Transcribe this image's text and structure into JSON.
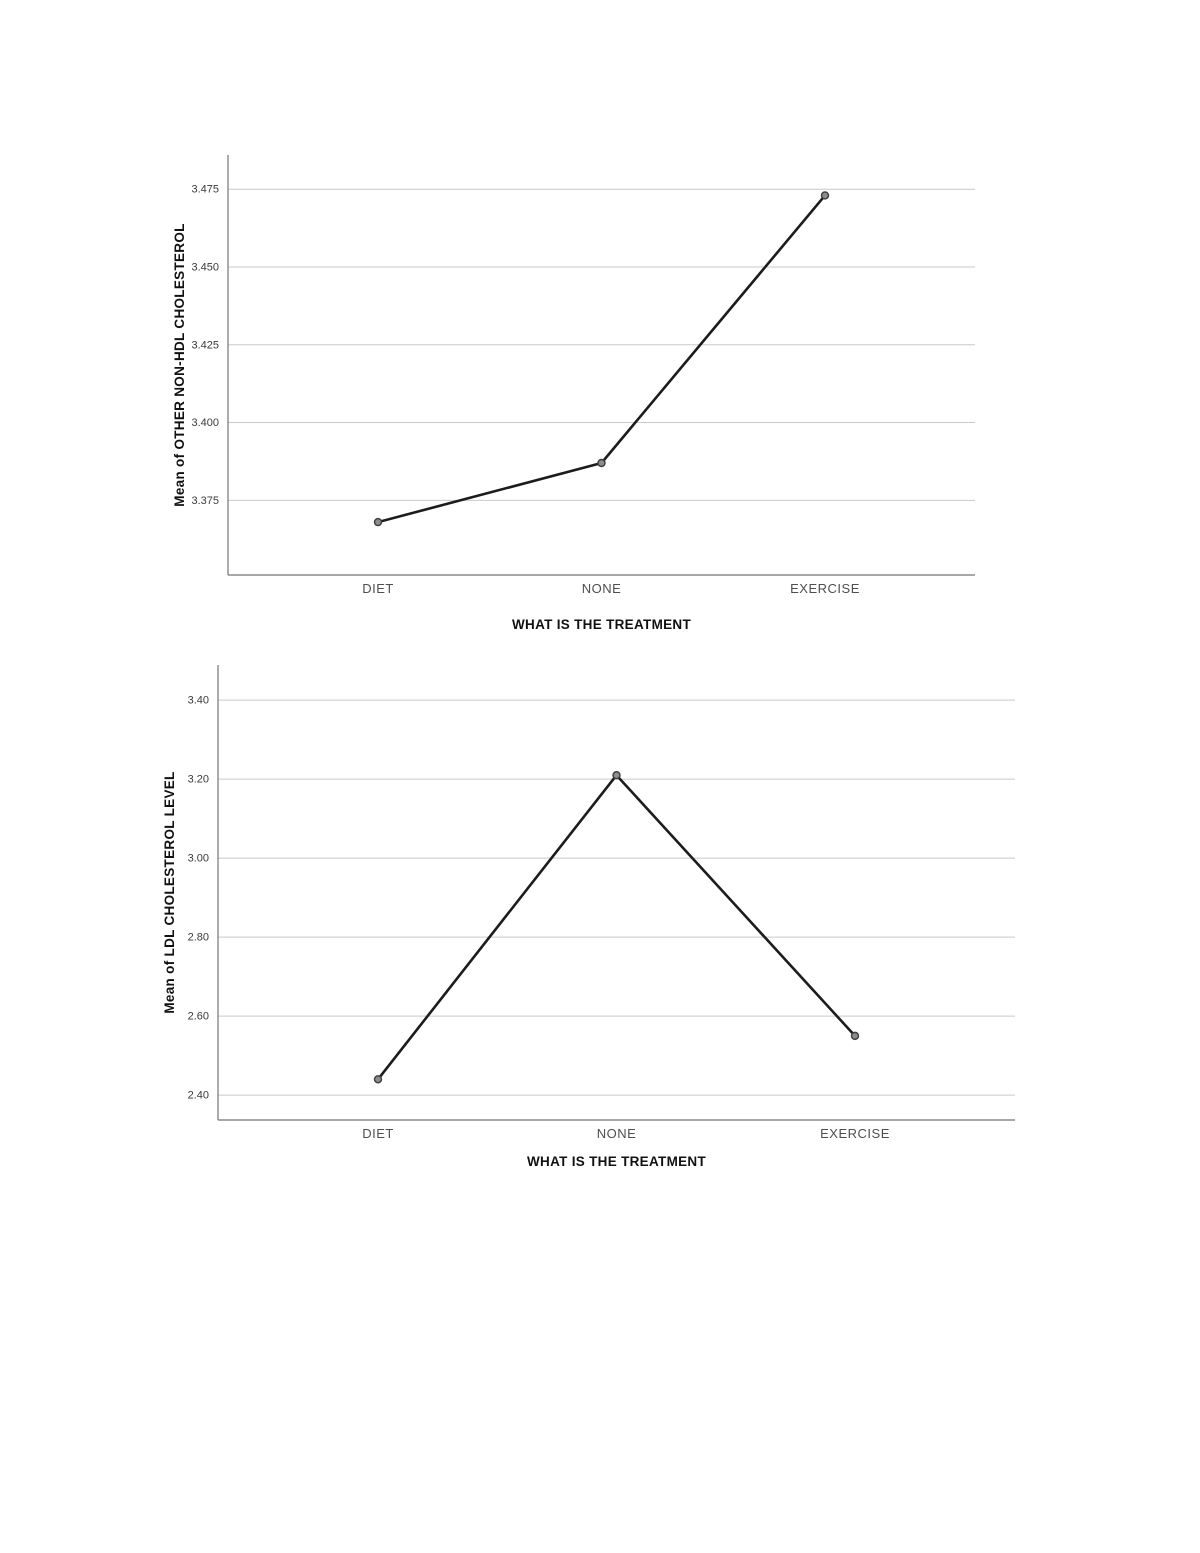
{
  "page": {
    "background": "#ffffff"
  },
  "style": {
    "line_color": "#1c1c1c",
    "marker_fill": "#8c8c8c",
    "marker_stroke": "#3c3c3c",
    "grid_color": "#c9c9c9",
    "axis_color": "#757575",
    "tick_label_color": "#3a3a3a",
    "category_label_color": "#4f4f4f",
    "title_color": "#111111"
  },
  "chart_data": [
    {
      "type": "line",
      "title": "",
      "xlabel": "WHAT IS THE TREATMENT",
      "ylabel": "Mean of OTHER NON-HDL CHOLESTEROL",
      "categories": [
        "DIET",
        "NONE",
        "EXERCISE"
      ],
      "values": [
        3.368,
        3.387,
        3.473
      ],
      "yticks": [
        3.375,
        3.4,
        3.425,
        3.45,
        3.475
      ],
      "ytick_labels": [
        "3.375",
        "3.400",
        "3.425",
        "3.450",
        "3.475"
      ],
      "ylim": [
        3.351,
        3.486
      ],
      "grid": true,
      "legend": "none"
    },
    {
      "type": "line",
      "title": "",
      "xlabel": "WHAT IS THE TREATMENT",
      "ylabel": "Mean of LDL CHOLESTEROL LEVEL",
      "categories": [
        "DIET",
        "NONE",
        "EXERCISE"
      ],
      "values": [
        2.44,
        3.21,
        2.55
      ],
      "yticks": [
        2.4,
        2.6,
        2.8,
        3.0,
        3.2,
        3.4
      ],
      "ytick_labels": [
        "2.40",
        "2.60",
        "2.80",
        "3.00",
        "3.20",
        "3.40"
      ],
      "ylim": [
        2.337,
        3.489
      ],
      "grid": true,
      "legend": "none"
    }
  ]
}
